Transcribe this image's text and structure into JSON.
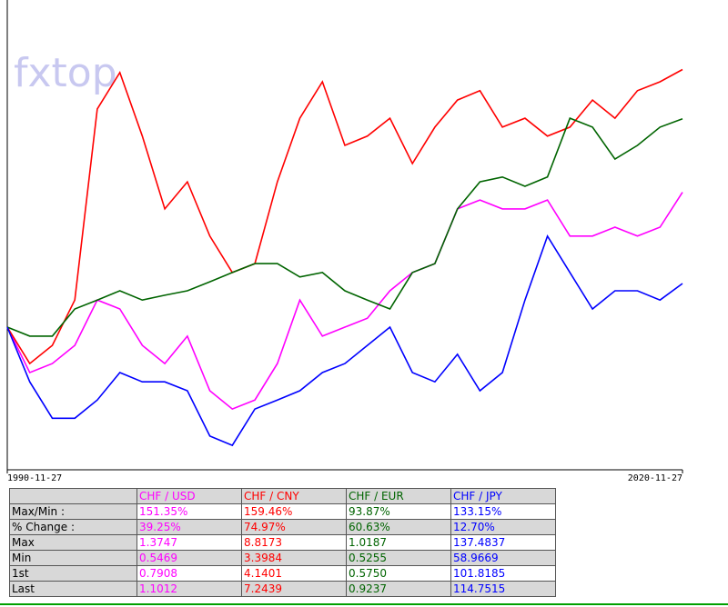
{
  "chart_data": {
    "type": "line",
    "watermark": "fxtop",
    "xticks": [
      "1990-11-27",
      "2020-11-27"
    ],
    "ylim": [
      58.5,
      195.2
    ],
    "series": [
      {
        "name": "CHF / USD",
        "color": "#ff00ff",
        "values": [
          100,
          86.8,
          89.4,
          94.7,
          107.9,
          105.3,
          94.7,
          89.4,
          97.4,
          81.5,
          76.2,
          78.8,
          89.4,
          107.9,
          97.4,
          100,
          102.6,
          110.6,
          115.9,
          118.5,
          134.4,
          137.0,
          134.4,
          134.4,
          137.0,
          126.5,
          126.5,
          129.1,
          126.5,
          129.1,
          139.25
        ]
      },
      {
        "name": "CHF / CNY",
        "color": "#ff0000",
        "values": [
          100,
          89.4,
          94.7,
          107.9,
          163.5,
          174.1,
          155.6,
          134.4,
          142.3,
          126.5,
          115.9,
          118.5,
          142.3,
          160.8,
          171.4,
          152.9,
          155.6,
          160.8,
          147.6,
          158.2,
          166.1,
          168.8,
          158.2,
          160.8,
          155.6,
          158.2,
          166.1,
          160.8,
          168.8,
          171.4,
          174.97
        ]
      },
      {
        "name": "CHF / EUR",
        "color": "#006400",
        "values": [
          100,
          97.4,
          97.4,
          105.3,
          107.9,
          110.6,
          107.9,
          109.3,
          110.6,
          113.2,
          115.9,
          118.5,
          118.5,
          114.6,
          115.9,
          110.6,
          107.9,
          105.3,
          115.9,
          118.5,
          134.4,
          142.3,
          143.7,
          141.0,
          143.7,
          160.8,
          158.2,
          148.9,
          152.9,
          158.2,
          160.63
        ]
      },
      {
        "name": "CHF / JPY",
        "color": "#0000ff",
        "values": [
          100,
          84.1,
          73.5,
          73.5,
          78.8,
          86.8,
          84.1,
          84.1,
          81.5,
          68.3,
          65.6,
          76.2,
          78.8,
          81.5,
          86.8,
          89.4,
          94.7,
          100,
          86.8,
          84.1,
          92.1,
          81.5,
          86.8,
          107.9,
          126.5,
          115.9,
          105.3,
          110.6,
          110.6,
          107.9,
          112.7
        ]
      }
    ]
  },
  "table": {
    "rows": [
      [
        "Max/Min :",
        "151.35%",
        "159.46%",
        "93.87%",
        "133.15%"
      ],
      [
        "% Change :",
        "39.25%",
        "74.97%",
        "60.63%",
        "12.70%"
      ],
      [
        "Max",
        "1.3747",
        "8.8173",
        "1.0187",
        "137.4837"
      ],
      [
        "Min",
        "0.5469",
        "3.3984",
        "0.5255",
        "58.9669"
      ],
      [
        "1st",
        "0.7908",
        "4.1401",
        "0.5750",
        "101.8185"
      ],
      [
        "Last",
        "1.1012",
        "7.2439",
        "0.9237",
        "114.7515"
      ]
    ]
  }
}
